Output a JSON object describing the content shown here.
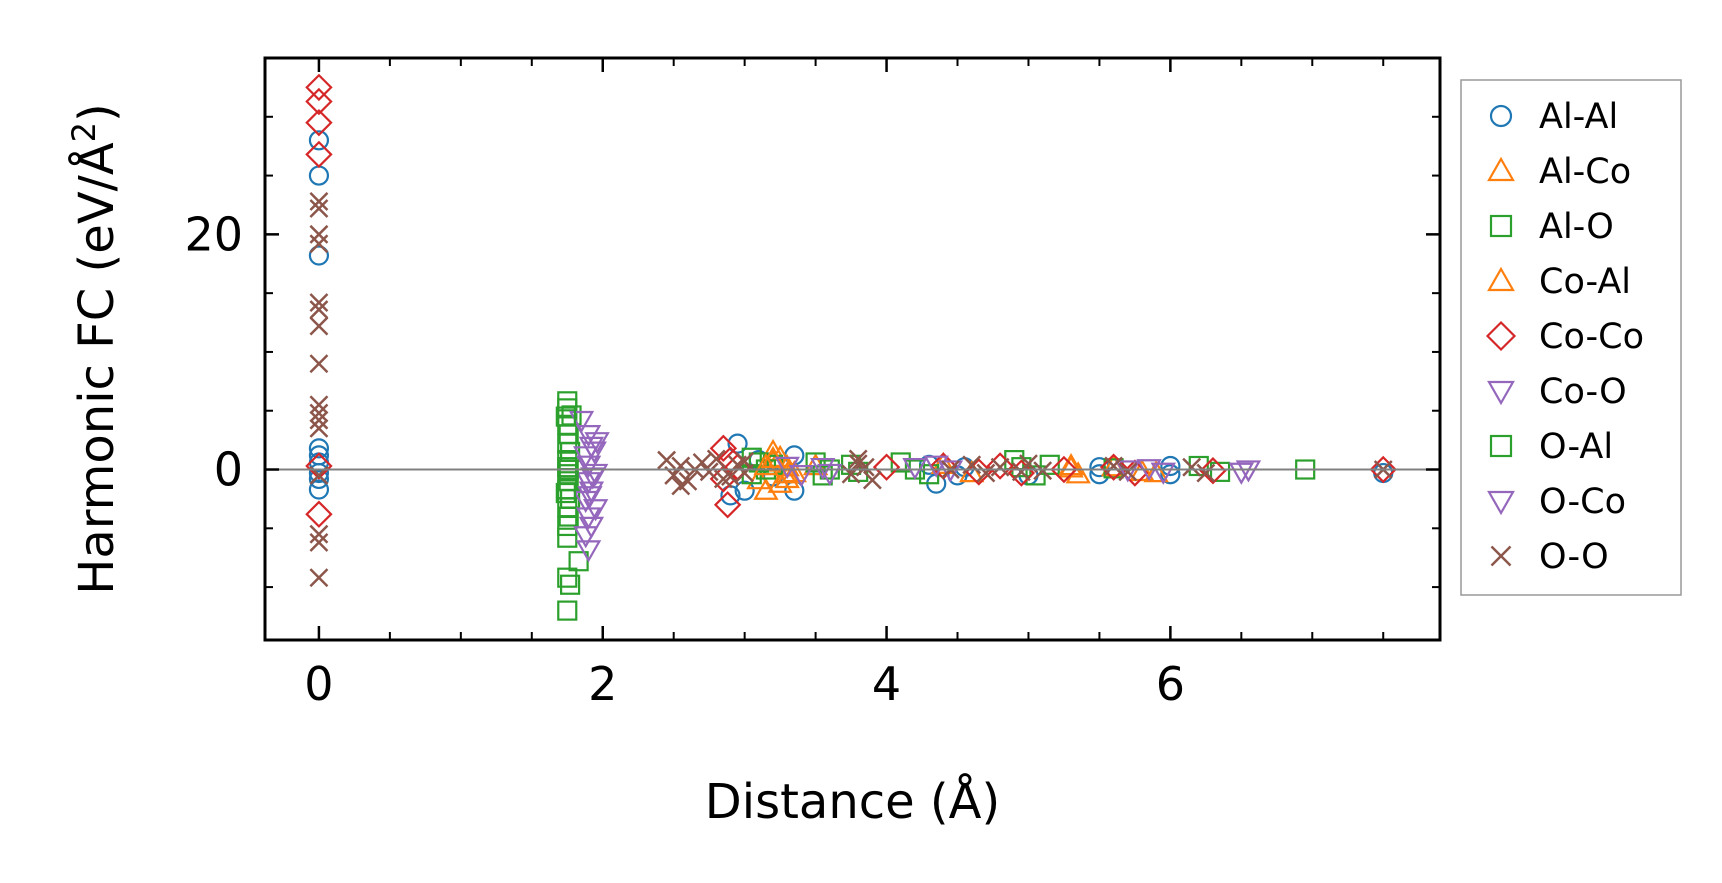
{
  "chart_data": {
    "type": "scatter",
    "xlabel": "Distance (Å)",
    "ylabel_main": "Harmonic FC (eV/Å",
    "ylabel_sup": "2",
    "ylabel_close": ")",
    "xlim": [
      -0.38,
      7.9
    ],
    "ylim": [
      -14.5,
      35
    ],
    "x_ticks": [
      0,
      2,
      4,
      6
    ],
    "x_tick_labels": [
      "0",
      "2",
      "4",
      "6"
    ],
    "y_ticks": [
      0,
      20
    ],
    "y_tick_labels": [
      "0",
      "20"
    ],
    "zero_line": true,
    "grid": false,
    "legend_position": "outside-right",
    "series": [
      {
        "name": "Al-Al",
        "marker": "circle",
        "color": "#1f77b4",
        "points": [
          [
            0,
            28
          ],
          [
            0,
            25
          ],
          [
            0,
            18.2
          ],
          [
            0,
            1.8
          ],
          [
            0,
            1.2
          ],
          [
            0,
            0.6
          ],
          [
            0,
            -0.3
          ],
          [
            0,
            -0.8
          ],
          [
            0,
            -1.7
          ],
          [
            2.95,
            2.2
          ],
          [
            2.9,
            -2.2
          ],
          [
            3.0,
            -1.8
          ],
          [
            3.35,
            1.2
          ],
          [
            3.35,
            -1.8
          ],
          [
            3.1,
            0.8
          ],
          [
            3.2,
            -0.6
          ],
          [
            4.35,
            -1.2
          ],
          [
            4.5,
            -0.5
          ],
          [
            4.3,
            0.4
          ],
          [
            4.55,
            0.2
          ],
          [
            5.0,
            -0.5
          ],
          [
            5.5,
            -0.4
          ],
          [
            5.5,
            0.2
          ],
          [
            6.0,
            -0.4
          ],
          [
            6.0,
            0.3
          ],
          [
            7.5,
            -0.3
          ]
        ]
      },
      {
        "name": "Al-Co",
        "marker": "triangle-up",
        "color": "#ff7f0e",
        "points": [
          [
            3.15,
            -1.8
          ],
          [
            3.2,
            1.5
          ],
          [
            3.25,
            -1.2
          ],
          [
            3.2,
            0.6
          ],
          [
            3.3,
            0.2
          ],
          [
            3.1,
            -0.9
          ],
          [
            3.25,
            1.0
          ],
          [
            3.3,
            -0.4
          ],
          [
            3.5,
            0.3
          ],
          [
            4.4,
            0.4
          ],
          [
            4.6,
            -0.3
          ],
          [
            5.35,
            -0.4
          ],
          [
            5.3,
            0.1
          ],
          [
            5.6,
            0.2
          ],
          [
            5.9,
            -0.3
          ]
        ]
      },
      {
        "name": "Al-O",
        "marker": "square",
        "color": "#2ca02c",
        "points": [
          [
            1.75,
            5.8
          ],
          [
            1.75,
            5.2
          ],
          [
            1.78,
            4.6
          ],
          [
            1.75,
            3.8
          ],
          [
            1.76,
            3.0
          ],
          [
            1.75,
            2.2
          ],
          [
            1.77,
            1.5
          ],
          [
            1.75,
            0.8
          ],
          [
            1.75,
            0.2
          ],
          [
            1.75,
            -0.4
          ],
          [
            1.76,
            -1.0
          ],
          [
            1.75,
            -1.7
          ],
          [
            1.77,
            -2.5
          ],
          [
            1.75,
            -3.2
          ],
          [
            1.76,
            -4.0
          ],
          [
            1.75,
            -4.8
          ],
          [
            1.75,
            -5.8
          ],
          [
            1.75,
            -9.2
          ],
          [
            1.77,
            -9.8
          ],
          [
            1.75,
            -12.0
          ],
          [
            1.83,
            -7.8
          ],
          [
            3.05,
            1.0
          ],
          [
            3.1,
            0.6
          ],
          [
            3.15,
            0.0
          ],
          [
            3.05,
            -0.4
          ],
          [
            3.2,
            0.4
          ],
          [
            3.5,
            0.6
          ],
          [
            3.6,
            0.0
          ],
          [
            3.55,
            -0.5
          ],
          [
            3.75,
            0.4
          ],
          [
            3.8,
            -0.2
          ],
          [
            4.1,
            0.6
          ],
          [
            4.2,
            0.0
          ],
          [
            4.3,
            -0.4
          ],
          [
            4.9,
            0.8
          ],
          [
            4.95,
            0.2
          ],
          [
            5.05,
            -0.5
          ],
          [
            5.15,
            0.4
          ],
          [
            5.6,
            0.1
          ],
          [
            6.2,
            0.3
          ],
          [
            6.35,
            -0.2
          ],
          [
            6.95,
            0.0
          ]
        ]
      },
      {
        "name": "Co-Al",
        "marker": "triangle-up",
        "color": "#ff7f0e",
        "points": [
          [
            3.2,
            0.9
          ],
          [
            3.3,
            -0.8
          ],
          [
            3.15,
            0.3
          ],
          [
            3.35,
            -0.3
          ],
          [
            5.3,
            0.3
          ],
          [
            5.8,
            -0.2
          ]
        ]
      },
      {
        "name": "Co-Co",
        "marker": "diamond",
        "color": "#d62728",
        "points": [
          [
            0,
            32.5
          ],
          [
            0,
            31.3
          ],
          [
            0,
            29.5
          ],
          [
            0,
            26.8
          ],
          [
            0,
            0.3
          ],
          [
            0,
            -3.8
          ],
          [
            2.85,
            1.8
          ],
          [
            2.88,
            -3.0
          ],
          [
            2.9,
            0.8
          ],
          [
            2.85,
            -0.8
          ],
          [
            2.95,
            0.2
          ],
          [
            4.0,
            0.2
          ],
          [
            4.4,
            0.3
          ],
          [
            4.65,
            -0.2
          ],
          [
            4.8,
            0.3
          ],
          [
            4.95,
            -0.3
          ],
          [
            5.25,
            0.0
          ],
          [
            5.6,
            0.2
          ],
          [
            5.75,
            -0.3
          ],
          [
            6.3,
            -0.1
          ],
          [
            7.5,
            0.0
          ]
        ]
      },
      {
        "name": "Co-O",
        "marker": "triangle-down",
        "color": "#9467bd",
        "points": [
          [
            1.85,
            4.2
          ],
          [
            1.9,
            3.0
          ],
          [
            1.92,
            2.0
          ],
          [
            1.88,
            1.2
          ],
          [
            1.9,
            0.4
          ],
          [
            1.95,
            -0.3
          ],
          [
            1.9,
            -1.0
          ],
          [
            1.92,
            -1.8
          ],
          [
            1.88,
            -2.6
          ],
          [
            1.95,
            -3.3
          ],
          [
            1.9,
            -4.0
          ],
          [
            1.92,
            -4.8
          ],
          [
            1.88,
            -5.6
          ],
          [
            1.9,
            -6.8
          ],
          [
            1.93,
            -0.6
          ],
          [
            1.96,
            2.4
          ],
          [
            3.3,
            0.3
          ],
          [
            3.4,
            -0.4
          ],
          [
            3.55,
            0.2
          ],
          [
            3.6,
            -0.3
          ],
          [
            4.2,
            0.2
          ],
          [
            4.35,
            0.4
          ],
          [
            4.45,
            0.0
          ],
          [
            5.7,
            0.0
          ],
          [
            5.95,
            -0.2
          ]
        ]
      },
      {
        "name": "O-Al",
        "marker": "square",
        "color": "#2ca02c",
        "points": [
          [
            1.74,
            4.5
          ],
          [
            1.76,
            0.0
          ],
          [
            1.74,
            -2.0
          ]
        ]
      },
      {
        "name": "O-Co",
        "marker": "triangle-down",
        "color": "#9467bd",
        "points": [
          [
            1.94,
            1.6
          ],
          [
            1.91,
            -2.2
          ],
          [
            6.5,
            -0.2
          ],
          [
            6.55,
            0.0
          ],
          [
            5.85,
            0.1
          ]
        ]
      },
      {
        "name": "O-O",
        "marker": "x",
        "color": "#8c564b",
        "points": [
          [
            0,
            22.8
          ],
          [
            0,
            22.2
          ],
          [
            0,
            20.0
          ],
          [
            0,
            19.2
          ],
          [
            0,
            14.2
          ],
          [
            0,
            13.6
          ],
          [
            0,
            12.2
          ],
          [
            0,
            9.0
          ],
          [
            0,
            5.5
          ],
          [
            0,
            4.8
          ],
          [
            0,
            4.2
          ],
          [
            0,
            3.5
          ],
          [
            0,
            -0.5
          ],
          [
            0,
            -5.5
          ],
          [
            0,
            -6.2
          ],
          [
            0,
            -9.2
          ],
          [
            2.45,
            0.8
          ],
          [
            2.5,
            -0.5
          ],
          [
            2.55,
            0.3
          ],
          [
            2.6,
            -1.0
          ],
          [
            2.7,
            0.6
          ],
          [
            2.75,
            -0.2
          ],
          [
            2.8,
            0.9
          ],
          [
            2.85,
            -0.8
          ],
          [
            2.95,
            0.4
          ],
          [
            3.0,
            -0.3
          ],
          [
            3.0,
            0.7
          ],
          [
            2.65,
            0.0
          ],
          [
            2.55,
            -1.4
          ],
          [
            2.9,
            -0.6
          ],
          [
            3.8,
            0.9
          ],
          [
            3.85,
            0.2
          ],
          [
            3.75,
            -0.4
          ],
          [
            3.9,
            -0.9
          ],
          [
            3.8,
            0.5
          ],
          [
            4.45,
            0.0
          ],
          [
            4.6,
            0.4
          ],
          [
            4.7,
            -0.3
          ],
          [
            4.8,
            0.2
          ],
          [
            4.95,
            -0.2
          ],
          [
            5.0,
            0.5
          ],
          [
            5.1,
            -0.1
          ],
          [
            5.6,
            0.3
          ],
          [
            5.7,
            -0.2
          ],
          [
            6.15,
            0.2
          ],
          [
            6.25,
            -0.3
          ],
          [
            7.5,
            0.0
          ]
        ]
      }
    ]
  }
}
